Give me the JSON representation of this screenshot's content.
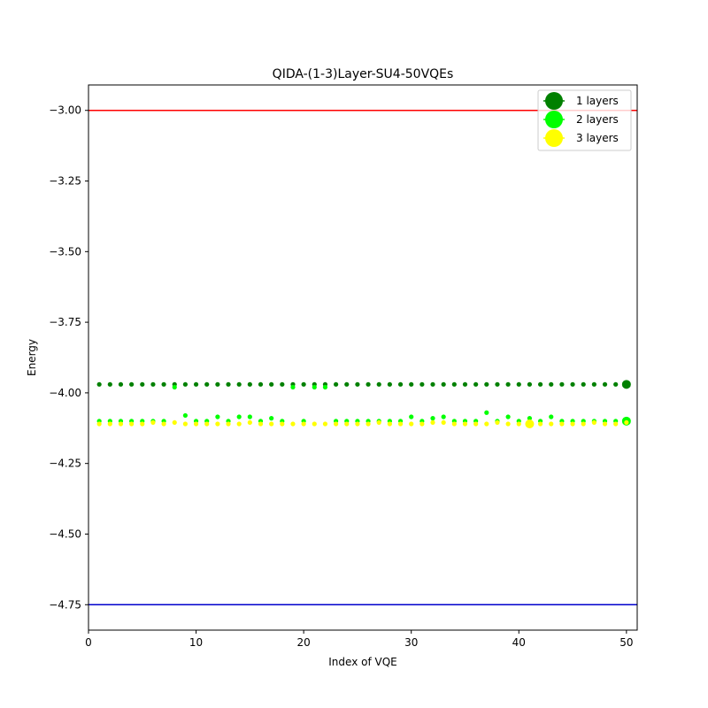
{
  "chart_data": {
    "type": "scatter",
    "title": "QIDA-(1-3)Layer-SU4-50VQEs",
    "xlabel": "Index of VQE",
    "ylabel": "Energy",
    "xlim": [
      0,
      51
    ],
    "ylim": [
      -4.84,
      -2.91
    ],
    "xticks": [
      0,
      10,
      20,
      30,
      40,
      50
    ],
    "xtick_labels": [
      "0",
      "10",
      "20",
      "30",
      "40",
      "50"
    ],
    "yticks": [
      -3.0,
      -3.25,
      -3.5,
      -3.75,
      -4.0,
      -4.25,
      -4.5,
      -4.75
    ],
    "ytick_labels": [
      "−3.00",
      "−3.25",
      "−3.50",
      "−3.75",
      "−4.00",
      "−4.25",
      "−4.50",
      "−4.75"
    ],
    "grid": false,
    "legend_position": "top-right",
    "reference_lines": [
      {
        "y": -3.0,
        "color": "#ff0000"
      },
      {
        "y": -4.75,
        "color": "#0000cc"
      }
    ],
    "series": [
      {
        "name": "1 layers",
        "color": "#008000",
        "x": [
          1,
          2,
          3,
          4,
          5,
          6,
          7,
          8,
          9,
          10,
          11,
          12,
          13,
          14,
          15,
          16,
          17,
          18,
          19,
          20,
          21,
          22,
          23,
          24,
          25,
          26,
          27,
          28,
          29,
          30,
          31,
          32,
          33,
          34,
          35,
          36,
          37,
          38,
          39,
          40,
          41,
          42,
          43,
          44,
          45,
          46,
          47,
          48,
          49,
          50
        ],
        "values": [
          -3.97,
          -3.97,
          -3.97,
          -3.97,
          -3.97,
          -3.97,
          -3.97,
          -3.97,
          -3.97,
          -3.97,
          -3.97,
          -3.97,
          -3.97,
          -3.97,
          -3.97,
          -3.97,
          -3.97,
          -3.97,
          -3.97,
          -3.97,
          -3.97,
          -3.97,
          -3.97,
          -3.97,
          -3.97,
          -3.97,
          -3.97,
          -3.97,
          -3.97,
          -3.97,
          -3.97,
          -3.97,
          -3.97,
          -3.97,
          -3.97,
          -3.97,
          -3.97,
          -3.97,
          -3.97,
          -3.97,
          -3.97,
          -3.97,
          -3.97,
          -3.97,
          -3.97,
          -3.97,
          -3.97,
          -3.97,
          -3.97,
          -3.97
        ],
        "highlight_index": 50
      },
      {
        "name": "2 layers",
        "color": "#00ff00",
        "x": [
          1,
          2,
          3,
          4,
          5,
          6,
          7,
          8,
          9,
          10,
          11,
          12,
          13,
          14,
          15,
          16,
          17,
          18,
          19,
          20,
          21,
          22,
          23,
          24,
          25,
          26,
          27,
          28,
          29,
          30,
          31,
          32,
          33,
          34,
          35,
          36,
          37,
          38,
          39,
          40,
          41,
          42,
          43,
          44,
          45,
          46,
          47,
          48,
          49,
          50
        ],
        "values": [
          -4.1,
          -4.1,
          -4.1,
          -4.1,
          -4.1,
          -4.1,
          -4.1,
          -3.98,
          -4.08,
          -4.1,
          -4.1,
          -4.085,
          -4.1,
          -4.085,
          -4.085,
          -4.1,
          -4.09,
          -4.1,
          -3.98,
          -4.1,
          -3.98,
          -3.98,
          -4.1,
          -4.1,
          -4.1,
          -4.1,
          -4.1,
          -4.1,
          -4.1,
          -4.085,
          -4.1,
          -4.09,
          -4.085,
          -4.1,
          -4.1,
          -4.1,
          -4.07,
          -4.1,
          -4.085,
          -4.1,
          -4.09,
          -4.1,
          -4.085,
          -4.1,
          -4.1,
          -4.1,
          -4.1,
          -4.1,
          -4.1,
          -4.1
        ],
        "highlight_index": 50
      },
      {
        "name": "3 layers",
        "color": "#ffff00",
        "x": [
          1,
          2,
          3,
          4,
          5,
          6,
          7,
          8,
          9,
          10,
          11,
          12,
          13,
          14,
          15,
          16,
          17,
          18,
          19,
          20,
          21,
          22,
          23,
          24,
          25,
          26,
          27,
          28,
          29,
          30,
          31,
          32,
          33,
          34,
          35,
          36,
          37,
          38,
          39,
          40,
          41,
          42,
          43,
          44,
          45,
          46,
          47,
          48,
          49,
          50
        ],
        "values": [
          -4.11,
          -4.11,
          -4.11,
          -4.11,
          -4.11,
          -4.105,
          -4.11,
          -4.105,
          -4.11,
          -4.11,
          -4.11,
          -4.11,
          -4.11,
          -4.11,
          -4.105,
          -4.11,
          -4.11,
          -4.11,
          -4.11,
          -4.11,
          -4.11,
          -4.11,
          -4.11,
          -4.11,
          -4.11,
          -4.11,
          -4.105,
          -4.11,
          -4.11,
          -4.11,
          -4.11,
          -4.105,
          -4.105,
          -4.11,
          -4.11,
          -4.11,
          -4.11,
          -4.105,
          -4.11,
          -4.11,
          -4.11,
          -4.11,
          -4.11,
          -4.11,
          -4.11,
          -4.11,
          -4.105,
          -4.11,
          -4.11,
          -4.105
        ],
        "highlight_index": 41
      }
    ]
  }
}
